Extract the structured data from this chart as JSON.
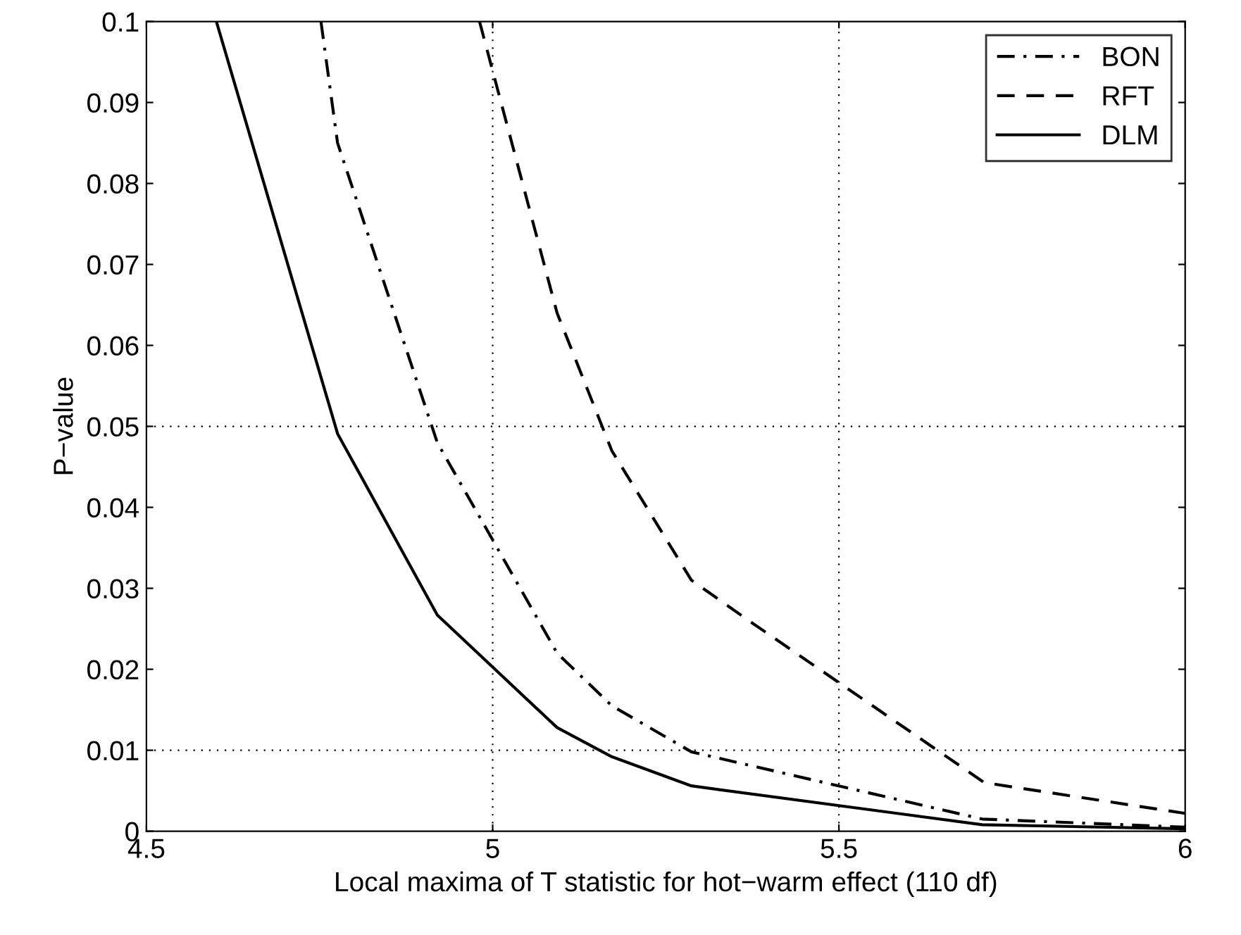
{
  "chart_data": {
    "type": "line",
    "xlabel": "Local maxima of T statistic for hot−warm effect (110 df)",
    "ylabel": "P−value",
    "xlim": [
      4.5,
      6
    ],
    "ylim": [
      0,
      0.1
    ],
    "xticks": [
      4.5,
      5,
      5.5,
      6
    ],
    "yticks": [
      0,
      0.01,
      0.02,
      0.03,
      0.04,
      0.05,
      0.06,
      0.07,
      0.08,
      0.09,
      0.1
    ],
    "legend": "top right",
    "grid": false,
    "marker": "none",
    "series": [
      {
        "name": "BON",
        "color": "#000000",
        "line_style": "dashdot",
        "x": [
          4.752,
          4.776,
          4.92,
          5.093,
          5.172,
          5.287,
          5.707,
          6
        ],
        "values": [
          0.1,
          0.085,
          0.048,
          0.022,
          0.0155,
          0.0098,
          0.0015,
          0.0005
        ]
      },
      {
        "name": "RFT",
        "color": "#000000",
        "line_style": "dashed",
        "x": [
          4.981,
          5.093,
          5.172,
          5.287,
          5.37,
          5.71,
          6
        ],
        "values": [
          0.1,
          0.064,
          0.047,
          0.031,
          0.026,
          0.006,
          0.0022
        ]
      },
      {
        "name": "DLM",
        "color": "#000000",
        "line_style": "solid",
        "x": [
          4.601,
          4.776,
          4.92,
          5.093,
          5.172,
          5.287,
          5.707,
          6
        ],
        "values": [
          0.1,
          0.0491,
          0.0267,
          0.0128,
          0.0092,
          0.0056,
          0.0008,
          0.0003
        ]
      }
    ],
    "ref_lines": [
      {
        "axis": "x",
        "value": 5,
        "line_style": "dotted",
        "color": "#000000"
      },
      {
        "axis": "x",
        "value": 5.5,
        "line_style": "dotted",
        "color": "#000000"
      },
      {
        "axis": "y",
        "value": 0.01,
        "line_style": "dotted",
        "color": "#000000"
      },
      {
        "axis": "y",
        "value": 0.05,
        "line_style": "dotted",
        "color": "#000000"
      }
    ]
  }
}
